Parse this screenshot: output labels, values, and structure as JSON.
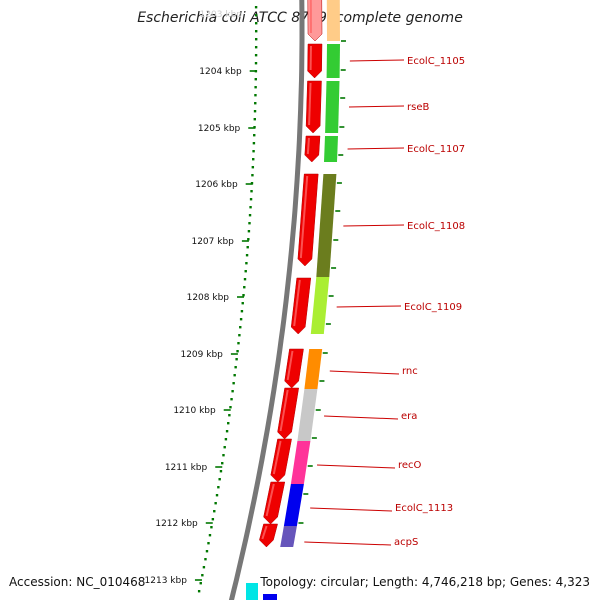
{
  "title": "Escherichia coli ATCC 8739, complete genome",
  "accession": "Accession: NC_010468",
  "summary": "Topology: circular; Length: 4,746,218 bp; Genes: 4,323",
  "top_tick_label": "1203 kbp",
  "ticks": [
    "1204 kbp",
    "1205 kbp",
    "1206 kbp",
    "1207 kbp",
    "1208 kbp",
    "1209 kbp",
    "1210 kbp",
    "1211 kbp",
    "1212 kbp",
    "1213 kbp"
  ],
  "genes": [
    {
      "label": "EcolC_1105",
      "color": "#33cc33"
    },
    {
      "label": "rseB",
      "color": "#33cc33"
    },
    {
      "label": "EcolC_1107",
      "color": "#33cc33"
    },
    {
      "label": "EcolC_1108",
      "color": "#6b7d1e"
    },
    {
      "label": "EcolC_1109",
      "color": "#aaee33"
    },
    {
      "label": "rnc",
      "color": "#ff8c00"
    },
    {
      "label": "era",
      "color": "#c8c8c8"
    },
    {
      "label": "recO",
      "color": "#ff3399"
    },
    {
      "label": "EcolC_1113",
      "color": "#0000ee"
    },
    {
      "label": "acpS",
      "color": "#6655bb"
    }
  ],
  "colors": {
    "tick": "#007700",
    "arrow": "#ee0000",
    "backbone": "#777777",
    "label": "#bb0000",
    "leader": "#cc0000"
  }
}
